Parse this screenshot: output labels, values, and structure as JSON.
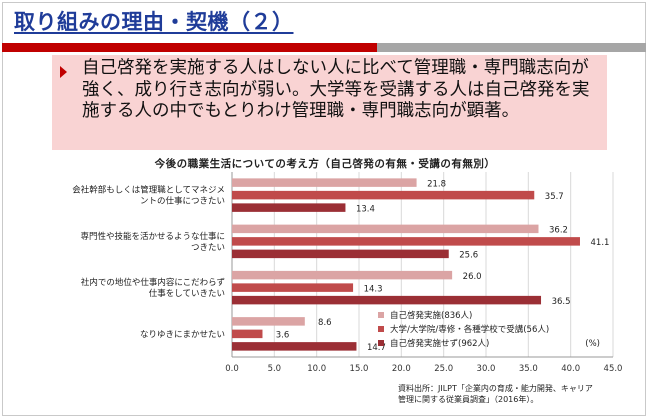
{
  "slide": {
    "title": "取り組みの理由・契機（２）",
    "bullet": "自己啓発を実施する人はしない人に比べて管理職・専門職志向が強く、成り行き志向が弱い。大学等を受講する人は自己啓発を実施する人の中でもとりわけ管理職・専門職志向が顕著。"
  },
  "source": {
    "line1": "資料出所：JILPT「企業内の育成・能力開発、キャリア",
    "line2": "管理に関する従業員調査」（2016年）。"
  },
  "colors": {
    "series": [
      "#dba4a4",
      "#c04b4b",
      "#9b2f35"
    ],
    "accent": "#c00000",
    "title": "#1f3c99"
  },
  "chart_data": {
    "type": "bar",
    "orientation": "horizontal",
    "title": "今後の職業生活についての考え方（自己啓発の有無・受講の有無別）",
    "categories": [
      [
        "会社幹部もしくは管理職としてマネジメ",
        "ントの仕事につきたい"
      ],
      [
        "専門性や技能を活かせるような仕事に",
        "つきたい"
      ],
      [
        "社内での地位や仕事内容にこだわらず",
        "仕事をしていきたい"
      ],
      [
        "なりゆきにまかせたい"
      ]
    ],
    "series": [
      {
        "name": "自己啓発実施(836人)",
        "values": [
          21.8,
          36.2,
          26.0,
          8.6
        ]
      },
      {
        "name": "大学/大学院/専修・各種学校で受講(56人)",
        "values": [
          35.7,
          41.1,
          14.3,
          3.6
        ]
      },
      {
        "name": "自己啓発実施せず(962人)",
        "values": [
          13.4,
          25.6,
          36.5,
          14.7
        ]
      }
    ],
    "value_labels": [
      [
        "21.8",
        "36.2",
        "26.0",
        "8.6"
      ],
      [
        "35.7",
        "41.1",
        "14.3",
        "3.6"
      ],
      [
        "13.4",
        "25.6",
        "36.5",
        "14.7"
      ]
    ],
    "unit_label": "(%)",
    "xlim": [
      0,
      45
    ],
    "xticks": [
      0,
      5,
      10,
      15,
      20,
      25,
      30,
      35,
      40,
      45
    ],
    "xtick_labels": [
      "0.0",
      "5.0",
      "10.0",
      "15.0",
      "20.0",
      "25.0",
      "30.0",
      "35.0",
      "40.0",
      "45.0"
    ],
    "grid": true,
    "legend": "bottom-right"
  }
}
